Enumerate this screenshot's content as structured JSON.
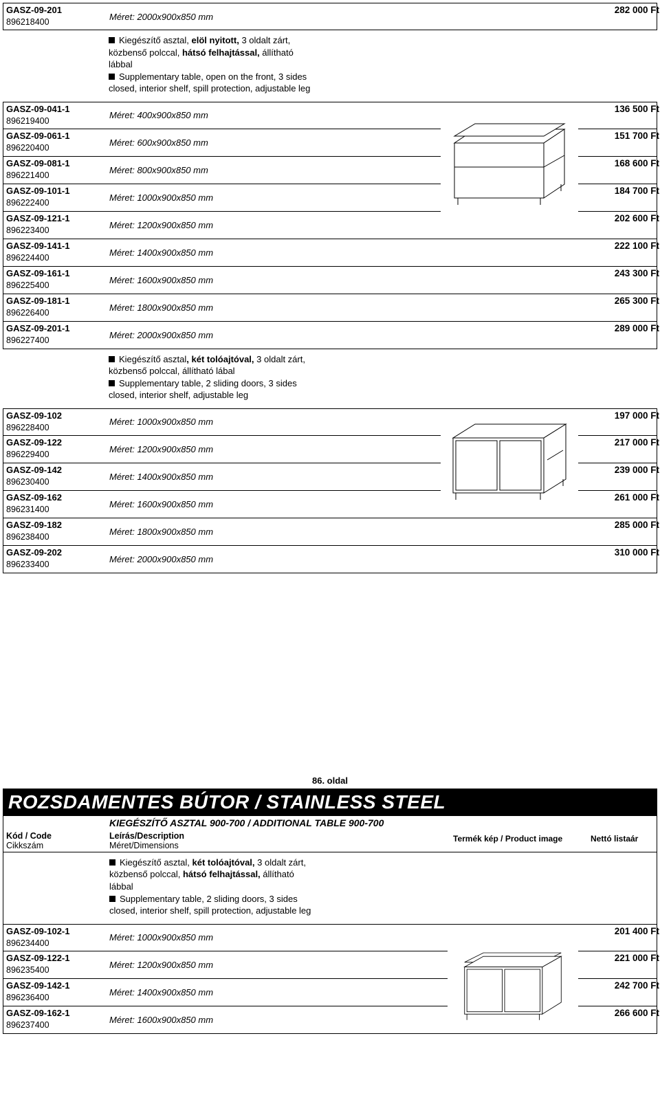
{
  "top_row": {
    "code": "GASZ-09-201",
    "num": "896218400",
    "dim": "Méret: 2000x900x850 mm",
    "price": "282 000 Ft"
  },
  "desc1": {
    "l1a": "Kiegészítő asztal, ",
    "l1b": "elöl nyitott,",
    "l1c": " 3 oldalt zárt,",
    "l2": "közbenső polccal, ",
    "l2b": "hátsó felhajtással,",
    "l2c": " állítható",
    "l3": "lábbal",
    "l4": "Supplementary table, open on the front, 3 sides",
    "l5": "closed, interior shelf, spill protection, adjustable leg"
  },
  "block1": [
    {
      "code": "GASZ-09-041-1",
      "num": "896219400",
      "dim": "Méret:   400x900x850 mm",
      "price": "136 500 Ft"
    },
    {
      "code": "GASZ-09-061-1",
      "num": "896220400",
      "dim": "Méret:   600x900x850 mm",
      "price": "151 700 Ft"
    },
    {
      "code": "GASZ-09-081-1",
      "num": "896221400",
      "dim": "Méret:   800x900x850 mm",
      "price": "168 600 Ft"
    },
    {
      "code": "GASZ-09-101-1",
      "num": "896222400",
      "dim": "Méret: 1000x900x850 mm",
      "price": "184 700 Ft"
    },
    {
      "code": "GASZ-09-121-1",
      "num": "896223400",
      "dim": "Méret: 1200x900x850 mm",
      "price": "202 600 Ft"
    },
    {
      "code": "GASZ-09-141-1",
      "num": "896224400",
      "dim": "Méret: 1400x900x850 mm",
      "price": "222 100 Ft"
    },
    {
      "code": "GASZ-09-161-1",
      "num": "896225400",
      "dim": "Méret: 1600x900x850 mm",
      "price": "243 300 Ft"
    },
    {
      "code": "GASZ-09-181-1",
      "num": "896226400",
      "dim": "Méret: 1800x900x850 mm",
      "price": "265 300 Ft"
    },
    {
      "code": "GASZ-09-201-1",
      "num": "896227400",
      "dim": "Méret: 2000x900x850 mm",
      "price": "289 000 Ft"
    }
  ],
  "desc2": {
    "l1a": "Kiegészítő asztal",
    "l1b": ", két tolóajtóval,",
    "l1c": " 3 oldalt zárt,",
    "l2": "közbenső polccal, állítható lábal",
    "l4": "Supplementary table, 2 sliding doors, 3 sides",
    "l5": "closed, interior shelf, adjustable leg"
  },
  "block2": [
    {
      "code": "GASZ-09-102",
      "num": "896228400",
      "dim": "Méret: 1000x900x850 mm",
      "price": "197 000 Ft"
    },
    {
      "code": "GASZ-09-122",
      "num": "896229400",
      "dim": "Méret: 1200x900x850 mm",
      "price": "217 000 Ft"
    },
    {
      "code": "GASZ-09-142",
      "num": "896230400",
      "dim": "Méret: 1400x900x850 mm",
      "price": "239 000 Ft"
    },
    {
      "code": "GASZ-09-162",
      "num": "896231400",
      "dim": "Méret: 1600x900x850 mm",
      "price": "261 000 Ft"
    },
    {
      "code": "GASZ-09-182",
      "num": "896238400",
      "dim": "Méret: 1800x900x850 mm",
      "price": "285 000 Ft"
    },
    {
      "code": "GASZ-09-202",
      "num": "896233400",
      "dim": "Méret: 2000x900x850 mm",
      "price": "310 000 Ft"
    }
  ],
  "page_label": "86. oldal",
  "banner_title": "ROZSDAMENTES BÚTOR / STAINLESS STEEL",
  "banner_sub": "KIEGÉSZÍTŐ ASZTAL 900-700 / ADDITIONAL TABLE 900-700",
  "hdr": {
    "c1a": "Kód / Code",
    "c1b": "Cikkszám",
    "c2a": "Leírás/Description",
    "c2b": "Méret/Dimensions",
    "c3": "Termék kép / Product image",
    "c4": "Nettó listaár"
  },
  "desc3": {
    "l1a": "Kiegészítő asztal, ",
    "l1b": "két tolóajtóval,",
    "l1c": " 3 oldalt zárt,",
    "l2a": "közbenső polccal, ",
    "l2b": "hátsó felhajtással,",
    "l2c": " állítható",
    "l3": "lábbal",
    "l4": "Supplementary table, 2 sliding doors, 3 sides",
    "l5": "closed, interior shelf, spill protection, adjustable leg"
  },
  "block3": [
    {
      "code": "GASZ-09-102-1",
      "num": "896234400",
      "dim": "Méret: 1000x900x850 mm",
      "price": "201 400 Ft"
    },
    {
      "code": "GASZ-09-122-1",
      "num": "896235400",
      "dim": "Méret: 1200x900x850 mm",
      "price": "221 000 Ft"
    },
    {
      "code": "GASZ-09-142-1",
      "num": "896236400",
      "dim": "Méret: 1400x900x850 mm",
      "price": "242 700 Ft"
    },
    {
      "code": "GASZ-09-162-1",
      "num": "896237400",
      "dim": "Méret: 1600x900x850 mm",
      "price": "266 600 Ft"
    }
  ]
}
